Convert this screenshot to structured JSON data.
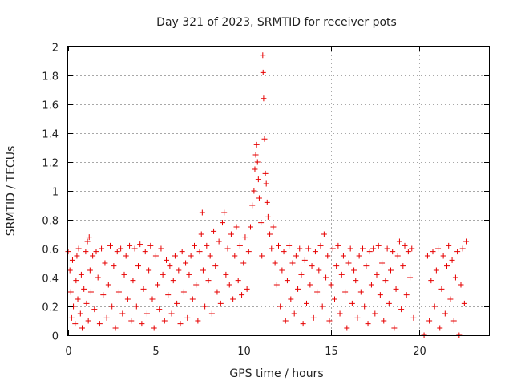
{
  "chart_data": {
    "type": "scatter",
    "title": "Day 321 of 2023, SRMTID for receiver pots",
    "xlabel": "GPS time / hours",
    "ylabel": "SRMTID / TECUs",
    "xlim": [
      0,
      24
    ],
    "ylim": [
      0,
      2
    ],
    "xticks": [
      0,
      5,
      10,
      15,
      20
    ],
    "xtick_labels": [
      "0",
      "5",
      "10",
      "15",
      "20"
    ],
    "yticks": [
      0,
      0.2,
      0.4,
      0.6,
      0.8,
      1,
      1.2,
      1.4,
      1.6,
      1.8,
      2
    ],
    "ytick_labels": [
      "0",
      "0.2",
      "0.4",
      "0.6",
      "0.8",
      "1",
      "1.2",
      "1.4",
      "1.6",
      "1.8",
      "2"
    ],
    "grid": true,
    "marker": "+",
    "color": "#e60000",
    "series": [
      {
        "name": "SRMTID",
        "points": [
          [
            0.0,
            0.58
          ],
          [
            0.1,
            0.45
          ],
          [
            0.15,
            0.3
          ],
          [
            0.2,
            0.12
          ],
          [
            0.25,
            0.52
          ],
          [
            0.3,
            0.2
          ],
          [
            0.4,
            0.08
          ],
          [
            0.45,
            0.38
          ],
          [
            0.5,
            0.55
          ],
          [
            0.55,
            0.25
          ],
          [
            0.6,
            0.6
          ],
          [
            0.7,
            0.15
          ],
          [
            0.75,
            0.42
          ],
          [
            0.8,
            0.05
          ],
          [
            0.9,
            0.32
          ],
          [
            1.0,
            0.58
          ],
          [
            1.05,
            0.22
          ],
          [
            1.1,
            0.65
          ],
          [
            1.15,
            0.1
          ],
          [
            1.2,
            0.68
          ],
          [
            1.25,
            0.45
          ],
          [
            1.3,
            0.3
          ],
          [
            1.4,
            0.55
          ],
          [
            1.5,
            0.18
          ],
          [
            1.6,
            0.58
          ],
          [
            1.7,
            0.4
          ],
          [
            1.8,
            0.08
          ],
          [
            1.9,
            0.6
          ],
          [
            2.0,
            0.28
          ],
          [
            2.1,
            0.5
          ],
          [
            2.2,
            0.12
          ],
          [
            2.3,
            0.35
          ],
          [
            2.4,
            0.62
          ],
          [
            2.5,
            0.2
          ],
          [
            2.6,
            0.48
          ],
          [
            2.7,
            0.05
          ],
          [
            2.8,
            0.58
          ],
          [
            2.9,
            0.3
          ],
          [
            3.0,
            0.6
          ],
          [
            3.1,
            0.15
          ],
          [
            3.2,
            0.42
          ],
          [
            3.3,
            0.55
          ],
          [
            3.4,
            0.25
          ],
          [
            3.5,
            0.62
          ],
          [
            3.6,
            0.1
          ],
          [
            3.7,
            0.38
          ],
          [
            3.8,
            0.6
          ],
          [
            3.9,
            0.2
          ],
          [
            4.0,
            0.48
          ],
          [
            4.1,
            0.63
          ],
          [
            4.2,
            0.08
          ],
          [
            4.3,
            0.32
          ],
          [
            4.4,
            0.58
          ],
          [
            4.5,
            0.15
          ],
          [
            4.6,
            0.45
          ],
          [
            4.7,
            0.62
          ],
          [
            4.8,
            0.25
          ],
          [
            4.9,
            0.05
          ],
          [
            5.0,
            0.55
          ],
          [
            5.1,
            0.35
          ],
          [
            5.2,
            0.18
          ],
          [
            5.3,
            0.6
          ],
          [
            5.4,
            0.42
          ],
          [
            5.5,
            0.1
          ],
          [
            5.6,
            0.52
          ],
          [
            5.7,
            0.28
          ],
          [
            5.8,
            0.48
          ],
          [
            5.9,
            0.15
          ],
          [
            6.0,
            0.38
          ],
          [
            6.1,
            0.55
          ],
          [
            6.2,
            0.22
          ],
          [
            6.3,
            0.45
          ],
          [
            6.4,
            0.08
          ],
          [
            6.5,
            0.58
          ],
          [
            6.6,
            0.3
          ],
          [
            6.7,
            0.5
          ],
          [
            6.8,
            0.12
          ],
          [
            6.9,
            0.42
          ],
          [
            7.0,
            0.55
          ],
          [
            7.1,
            0.25
          ],
          [
            7.2,
            0.62
          ],
          [
            7.3,
            0.35
          ],
          [
            7.4,
            0.1
          ],
          [
            7.5,
            0.58
          ],
          [
            7.6,
            0.7
          ],
          [
            7.65,
            0.85
          ],
          [
            7.7,
            0.45
          ],
          [
            7.8,
            0.2
          ],
          [
            7.9,
            0.62
          ],
          [
            8.0,
            0.38
          ],
          [
            8.1,
            0.55
          ],
          [
            8.2,
            0.15
          ],
          [
            8.3,
            0.72
          ],
          [
            8.4,
            0.48
          ],
          [
            8.5,
            0.3
          ],
          [
            8.6,
            0.65
          ],
          [
            8.7,
            0.22
          ],
          [
            8.8,
            0.78
          ],
          [
            8.9,
            0.85
          ],
          [
            9.0,
            0.42
          ],
          [
            9.1,
            0.6
          ],
          [
            9.2,
            0.35
          ],
          [
            9.3,
            0.7
          ],
          [
            9.4,
            0.25
          ],
          [
            9.5,
            0.55
          ],
          [
            9.6,
            0.75
          ],
          [
            9.7,
            0.38
          ],
          [
            9.8,
            0.62
          ],
          [
            9.9,
            0.28
          ],
          [
            10.0,
            0.5
          ],
          [
            10.1,
            0.68
          ],
          [
            10.2,
            0.32
          ],
          [
            10.3,
            0.58
          ],
          [
            10.4,
            0.75
          ],
          [
            10.5,
            0.9
          ],
          [
            10.6,
            1.0
          ],
          [
            10.65,
            1.15
          ],
          [
            10.7,
            1.25
          ],
          [
            10.75,
            1.32
          ],
          [
            10.8,
            1.2
          ],
          [
            10.85,
            1.08
          ],
          [
            10.9,
            0.95
          ],
          [
            11.0,
            0.78
          ],
          [
            11.05,
            0.55
          ],
          [
            11.1,
            1.94
          ],
          [
            11.12,
            1.82
          ],
          [
            11.15,
            1.64
          ],
          [
            11.2,
            1.36
          ],
          [
            11.25,
            1.12
          ],
          [
            11.3,
            1.05
          ],
          [
            11.35,
            0.92
          ],
          [
            11.4,
            0.82
          ],
          [
            11.5,
            0.7
          ],
          [
            11.6,
            0.6
          ],
          [
            11.7,
            0.75
          ],
          [
            11.8,
            0.5
          ],
          [
            11.9,
            0.35
          ],
          [
            12.0,
            0.62
          ],
          [
            12.1,
            0.2
          ],
          [
            12.2,
            0.45
          ],
          [
            12.3,
            0.58
          ],
          [
            12.4,
            0.1
          ],
          [
            12.5,
            0.38
          ],
          [
            12.6,
            0.62
          ],
          [
            12.7,
            0.25
          ],
          [
            12.8,
            0.5
          ],
          [
            12.9,
            0.15
          ],
          [
            13.0,
            0.55
          ],
          [
            13.1,
            0.32
          ],
          [
            13.2,
            0.6
          ],
          [
            13.3,
            0.42
          ],
          [
            13.4,
            0.08
          ],
          [
            13.5,
            0.52
          ],
          [
            13.6,
            0.22
          ],
          [
            13.7,
            0.6
          ],
          [
            13.8,
            0.35
          ],
          [
            13.9,
            0.48
          ],
          [
            14.0,
            0.12
          ],
          [
            14.1,
            0.58
          ],
          [
            14.2,
            0.3
          ],
          [
            14.3,
            0.45
          ],
          [
            14.4,
            0.62
          ],
          [
            14.5,
            0.2
          ],
          [
            14.6,
            0.7
          ],
          [
            14.7,
            0.4
          ],
          [
            14.8,
            0.55
          ],
          [
            14.9,
            0.1
          ],
          [
            15.0,
            0.35
          ],
          [
            15.1,
            0.6
          ],
          [
            15.2,
            0.25
          ],
          [
            15.3,
            0.48
          ],
          [
            15.4,
            0.62
          ],
          [
            15.5,
            0.15
          ],
          [
            15.6,
            0.42
          ],
          [
            15.7,
            0.55
          ],
          [
            15.8,
            0.3
          ],
          [
            15.9,
            0.05
          ],
          [
            16.0,
            0.5
          ],
          [
            16.1,
            0.6
          ],
          [
            16.2,
            0.22
          ],
          [
            16.3,
            0.45
          ],
          [
            16.4,
            0.38
          ],
          [
            16.5,
            0.12
          ],
          [
            16.6,
            0.55
          ],
          [
            16.7,
            0.3
          ],
          [
            16.8,
            0.6
          ],
          [
            16.9,
            0.2
          ],
          [
            17.0,
            0.48
          ],
          [
            17.1,
            0.08
          ],
          [
            17.2,
            0.58
          ],
          [
            17.3,
            0.35
          ],
          [
            17.4,
            0.6
          ],
          [
            17.5,
            0.15
          ],
          [
            17.6,
            0.42
          ],
          [
            17.7,
            0.62
          ],
          [
            17.8,
            0.28
          ],
          [
            17.9,
            0.5
          ],
          [
            18.0,
            0.1
          ],
          [
            18.1,
            0.38
          ],
          [
            18.2,
            0.6
          ],
          [
            18.3,
            0.22
          ],
          [
            18.4,
            0.45
          ],
          [
            18.5,
            0.58
          ],
          [
            18.6,
            0.05
          ],
          [
            18.7,
            0.32
          ],
          [
            18.8,
            0.55
          ],
          [
            18.9,
            0.65
          ],
          [
            19.0,
            0.18
          ],
          [
            19.1,
            0.48
          ],
          [
            19.2,
            0.62
          ],
          [
            19.3,
            0.28
          ],
          [
            19.4,
            0.58
          ],
          [
            19.5,
            0.4
          ],
          [
            19.6,
            0.6
          ],
          [
            19.7,
            0.12
          ],
          [
            20.3,
            0.0
          ],
          [
            20.5,
            0.55
          ],
          [
            20.6,
            0.1
          ],
          [
            20.7,
            0.38
          ],
          [
            20.8,
            0.58
          ],
          [
            20.9,
            0.2
          ],
          [
            21.0,
            0.45
          ],
          [
            21.1,
            0.6
          ],
          [
            21.2,
            0.05
          ],
          [
            21.3,
            0.32
          ],
          [
            21.4,
            0.55
          ],
          [
            21.5,
            0.15
          ],
          [
            21.6,
            0.48
          ],
          [
            21.7,
            0.62
          ],
          [
            21.8,
            0.25
          ],
          [
            21.9,
            0.52
          ],
          [
            22.0,
            0.1
          ],
          [
            22.1,
            0.4
          ],
          [
            22.2,
            0.58
          ],
          [
            22.3,
            0.0
          ],
          [
            22.4,
            0.35
          ],
          [
            22.5,
            0.6
          ],
          [
            22.6,
            0.22
          ],
          [
            22.7,
            0.65
          ]
        ]
      }
    ]
  }
}
